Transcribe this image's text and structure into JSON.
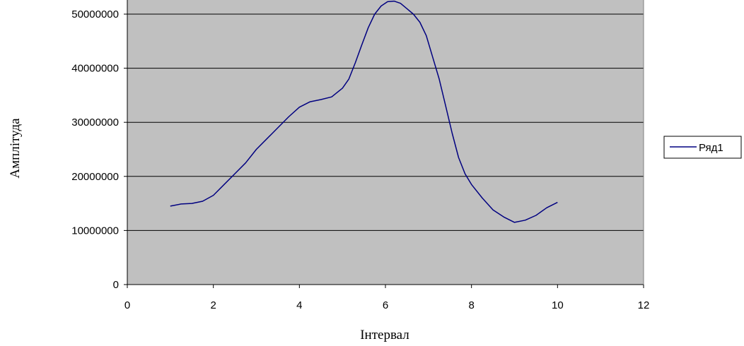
{
  "chart_data": {
    "type": "scatter",
    "xlabel": "Інтервал",
    "ylabel": "Амплітуда",
    "xlim": [
      0,
      12
    ],
    "ylim": [
      0,
      52000000
    ],
    "x_ticks": [
      0,
      2,
      4,
      6,
      8,
      10,
      12
    ],
    "y_ticks": [
      0,
      10000000,
      20000000,
      30000000,
      40000000,
      50000000
    ],
    "x_tick_labels": [
      "0",
      "2",
      "4",
      "6",
      "8",
      "10",
      "12"
    ],
    "y_tick_labels": [
      "0",
      "10000000",
      "20000000",
      "30000000",
      "40000000",
      "50000000"
    ],
    "grid": "horizontal",
    "plot_background": "#c0c0c0",
    "line_color": "#000080",
    "legend_position": "right",
    "series": [
      {
        "name": "Ряд1",
        "x": [
          1.0,
          1.25,
          1.5,
          1.75,
          2.0,
          2.25,
          2.5,
          2.75,
          3.0,
          3.25,
          3.5,
          3.75,
          4.0,
          4.25,
          4.5,
          4.75,
          5.0,
          5.15,
          5.3,
          5.45,
          5.6,
          5.75,
          5.9,
          6.05,
          6.2,
          6.35,
          6.5,
          6.65,
          6.8,
          6.95,
          7.1,
          7.25,
          7.4,
          7.55,
          7.7,
          7.85,
          8.0,
          8.25,
          8.5,
          8.75,
          9.0,
          9.25,
          9.5,
          9.75,
          10.0
        ],
        "y": [
          14500000,
          14900000,
          15000000,
          15400000,
          16500000,
          18500000,
          20500000,
          22500000,
          25000000,
          27000000,
          29000000,
          31000000,
          32800000,
          33800000,
          34200000,
          34700000,
          36300000,
          38000000,
          41000000,
          44300000,
          47500000,
          50000000,
          51500000,
          52300000,
          52400000,
          52000000,
          51000000,
          50000000,
          48500000,
          46000000,
          42000000,
          38000000,
          33000000,
          28000000,
          23500000,
          20500000,
          18500000,
          16000000,
          13800000,
          12500000,
          11500000,
          11900000,
          12800000,
          14200000,
          15200000
        ]
      }
    ]
  }
}
